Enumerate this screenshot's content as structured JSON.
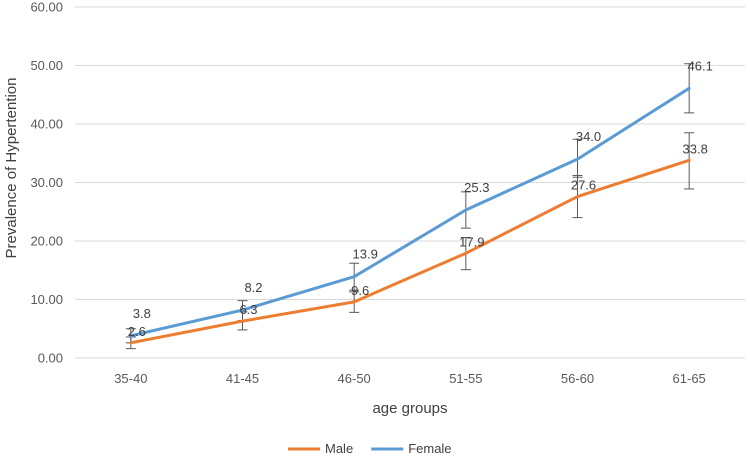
{
  "chart_data": {
    "type": "line",
    "title": "",
    "xlabel": "age groups",
    "ylabel": "Prevalence of Hypertention",
    "categories": [
      "35-40",
      "41-45",
      "46-50",
      "51-55",
      "56-60",
      "61-65"
    ],
    "ylim": [
      0,
      60
    ],
    "ytick_labels": [
      "0.00",
      "10.00",
      "20.00",
      "30.00",
      "40.00",
      "50.00",
      "60.00"
    ],
    "grid": true,
    "legend_position": "bottom",
    "series": [
      {
        "name": "Male",
        "color": "#ED7D31",
        "values": [
          2.6,
          6.3,
          9.6,
          17.9,
          27.6,
          33.8
        ],
        "labels": [
          "2.6",
          "6.3",
          "9.6",
          "17.9",
          "27.6",
          "33.8"
        ],
        "error_low": [
          1.6,
          4.8,
          7.8,
          15.1,
          24.0,
          28.9
        ],
        "error_high": [
          3.6,
          7.9,
          11.6,
          20.6,
          31.2,
          38.5
        ]
      },
      {
        "name": "Female",
        "color": "#5B9BD5",
        "values": [
          3.8,
          8.2,
          13.9,
          25.3,
          34.0,
          46.1
        ],
        "labels": [
          "3.8",
          "8.2",
          "13.9",
          "25.3",
          "34.0",
          "46.1"
        ],
        "error_low": [
          2.6,
          6.4,
          11.3,
          22.2,
          30.9,
          41.9
        ],
        "error_high": [
          5.0,
          9.8,
          16.2,
          28.4,
          37.4,
          50.3
        ]
      }
    ]
  }
}
